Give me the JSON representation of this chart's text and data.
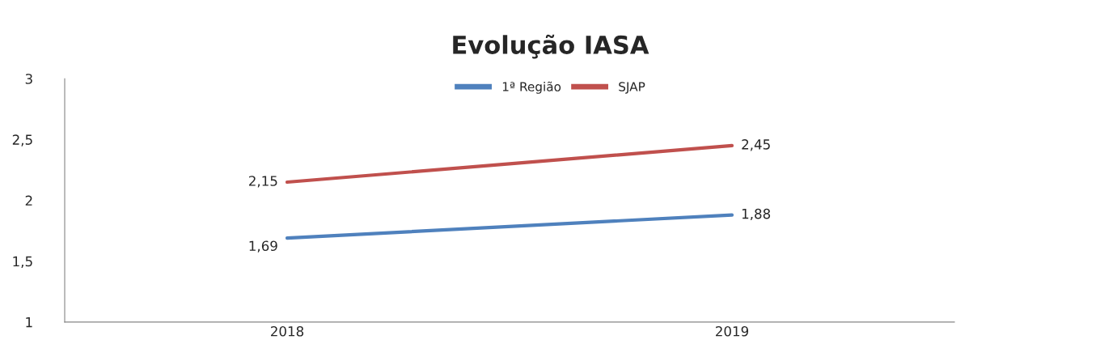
{
  "chart_data": {
    "type": "line",
    "title": "Evolução IASA",
    "categories": [
      "2018",
      "2019"
    ],
    "series": [
      {
        "name": "1ª Região",
        "color": "#4f81bd",
        "values": [
          1.69,
          1.88
        ],
        "value_labels": [
          "1,69",
          "1,88"
        ]
      },
      {
        "name": "SJAP",
        "color": "#c0504d",
        "values": [
          2.15,
          2.45
        ],
        "value_labels": [
          "2,15",
          "2,45"
        ]
      }
    ],
    "ylim": [
      1,
      3
    ],
    "yticks": [
      1,
      {
        "value": 1.5,
        "label": "1,5"
      },
      2,
      {
        "value": 2.5,
        "label": "2,5"
      },
      3
    ],
    "legend": "top",
    "grid": false,
    "marker": "none",
    "line_style": "solid"
  }
}
